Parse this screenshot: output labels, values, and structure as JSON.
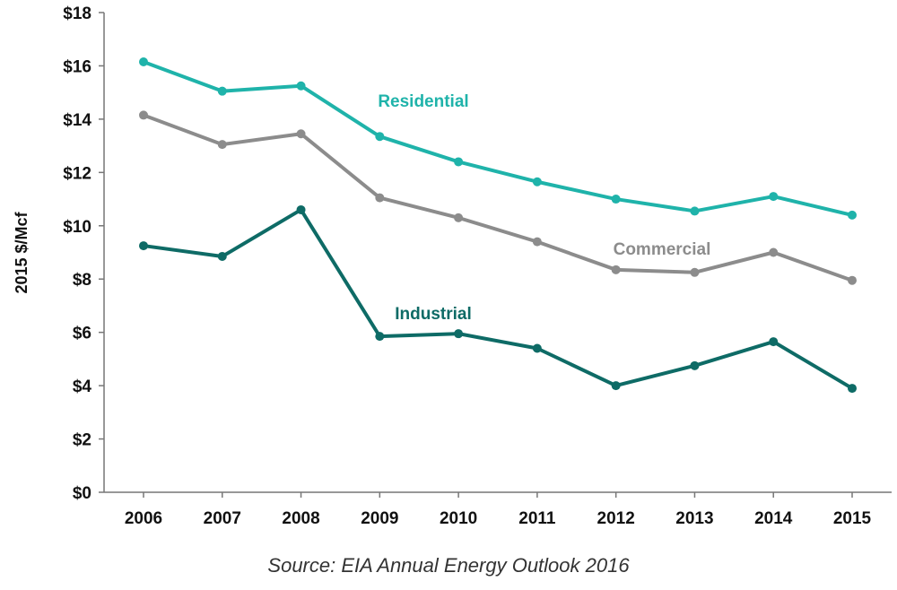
{
  "chart_data": {
    "type": "line",
    "x": [
      "2006",
      "2007",
      "2008",
      "2009",
      "2010",
      "2011",
      "2012",
      "2013",
      "2014",
      "2015"
    ],
    "ylabel": "2015 $/Mcf",
    "ylim": [
      0,
      18
    ],
    "yticks": [
      0,
      2,
      4,
      6,
      8,
      10,
      12,
      14,
      16,
      18
    ],
    "ytick_labels": [
      "$0",
      "$2",
      "$4",
      "$6",
      "$8",
      "$10",
      "$12",
      "$14",
      "$16",
      "$18"
    ],
    "grid": false,
    "series": [
      {
        "name": "Residential",
        "color": "#1FB3AA",
        "values": [
          16.15,
          15.05,
          15.25,
          13.35,
          12.4,
          11.65,
          11.0,
          10.55,
          11.1,
          10.4
        ]
      },
      {
        "name": "Commercial",
        "color": "#8C8C8C",
        "values": [
          14.15,
          13.05,
          13.45,
          11.05,
          10.3,
          9.4,
          8.35,
          8.25,
          9.0,
          7.95
        ]
      },
      {
        "name": "Industrial",
        "color": "#0E6B66",
        "values": [
          9.25,
          8.85,
          10.6,
          5.85,
          5.95,
          5.4,
          4.0,
          4.75,
          5.65,
          3.9
        ]
      }
    ],
    "source": "Source: EIA Annual Energy Outlook 2016"
  }
}
